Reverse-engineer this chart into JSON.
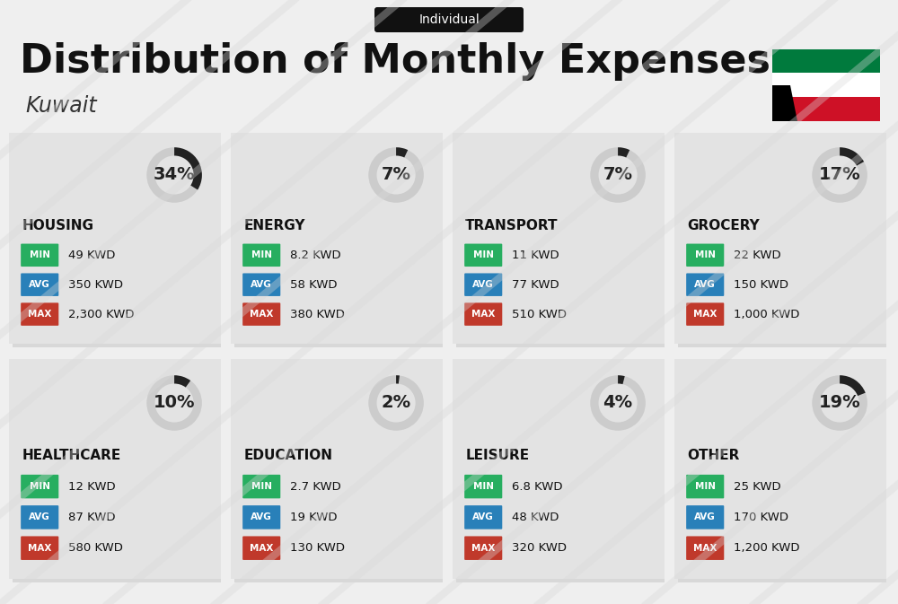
{
  "title": "Distribution of Monthly Expenses",
  "subtitle": "Individual",
  "country": "Kuwait",
  "bg_color": "#efefef",
  "categories": [
    {
      "name": "HOUSING",
      "pct": 34,
      "min_val": "49 KWD",
      "avg_val": "350 KWD",
      "max_val": "2,300 KWD",
      "row": 0,
      "col": 0
    },
    {
      "name": "ENERGY",
      "pct": 7,
      "min_val": "8.2 KWD",
      "avg_val": "58 KWD",
      "max_val": "380 KWD",
      "row": 0,
      "col": 1
    },
    {
      "name": "TRANSPORT",
      "pct": 7,
      "min_val": "11 KWD",
      "avg_val": "77 KWD",
      "max_val": "510 KWD",
      "row": 0,
      "col": 2
    },
    {
      "name": "GROCERY",
      "pct": 17,
      "min_val": "22 KWD",
      "avg_val": "150 KWD",
      "max_val": "1,000 KWD",
      "row": 0,
      "col": 3
    },
    {
      "name": "HEALTHCARE",
      "pct": 10,
      "min_val": "12 KWD",
      "avg_val": "87 KWD",
      "max_val": "580 KWD",
      "row": 1,
      "col": 0
    },
    {
      "name": "EDUCATION",
      "pct": 2,
      "min_val": "2.7 KWD",
      "avg_val": "19 KWD",
      "max_val": "130 KWD",
      "row": 1,
      "col": 1
    },
    {
      "name": "LEISURE",
      "pct": 4,
      "min_val": "6.8 KWD",
      "avg_val": "48 KWD",
      "max_val": "320 KWD",
      "row": 1,
      "col": 2
    },
    {
      "name": "OTHER",
      "pct": 19,
      "min_val": "25 KWD",
      "avg_val": "170 KWD",
      "max_val": "1,200 KWD",
      "row": 1,
      "col": 3
    }
  ],
  "min_color": "#27ae60",
  "avg_color": "#2980b9",
  "max_color": "#c0392b",
  "arc_dark": "#222222",
  "arc_light": "#cccccc",
  "card_bg": "#e3e3e3",
  "shadow_color": "#d0d0d0",
  "header_bg": "#efefef",
  "pill_bg": "#111111",
  "pill_text": "#ffffff",
  "title_color": "#111111",
  "name_color": "#111111",
  "val_color": "#111111",
  "kuwait_green": "#007A3D",
  "kuwait_white": "#FFFFFF",
  "kuwait_red": "#CE1126",
  "kuwait_black": "#000000"
}
